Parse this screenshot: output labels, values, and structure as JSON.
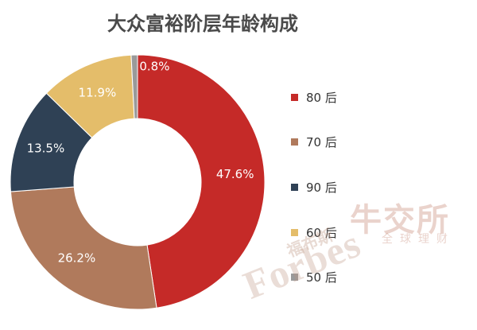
{
  "chart_data": {
    "type": "pie",
    "title": "大众富裕阶层年龄构成",
    "categories": [
      "80 后",
      "70 后",
      "90 后",
      "60 后",
      "50 后"
    ],
    "values": [
      47.6,
      26.2,
      13.5,
      11.9,
      0.8
    ],
    "labels": [
      "47.6%",
      "26.2%",
      "13.5%",
      "11.9%",
      "0.8%"
    ],
    "colors": [
      "#c52a28",
      "#b07a5c",
      "#2f4155",
      "#e4bd6a",
      "#9a9a9a"
    ],
    "legend_position": "right",
    "donut": true
  },
  "watermark": {
    "forbes_cn": "福布斯",
    "forbes": "Forbes",
    "logo": "牛交所",
    "logo_sub": "全球理财"
  }
}
